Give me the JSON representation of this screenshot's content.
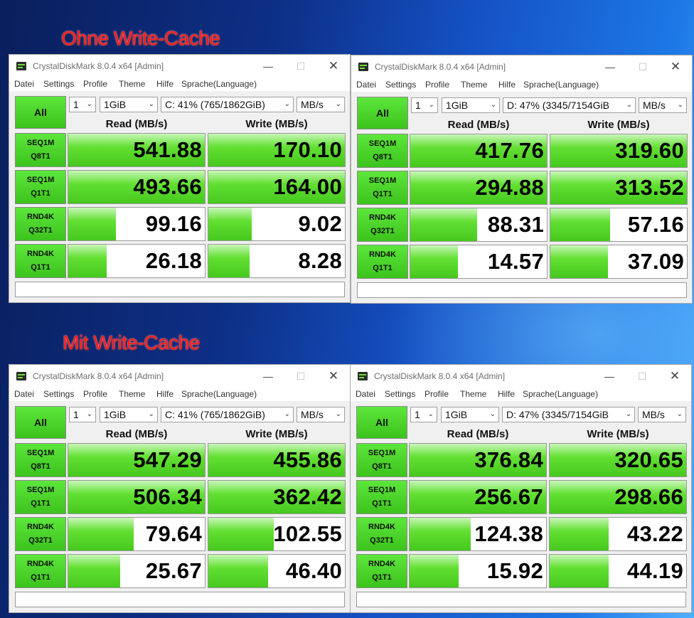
{
  "captions": {
    "top": "Ohne Write-Cache",
    "bottom": "Mit Write-Cache"
  },
  "colors": {
    "caption": "#ff1b1b",
    "bar_green": "#46c81e",
    "window_bg": "#f0f0f0"
  },
  "menu": [
    "Datei",
    "Settings",
    "Profile",
    "Theme",
    "Hilfe",
    "Sprache(Language)"
  ],
  "row_labels": [
    [
      "SEQ1M",
      "Q8T1"
    ],
    [
      "SEQ1M",
      "Q1T1"
    ],
    [
      "RND4K",
      "Q32T1"
    ],
    [
      "RND4K",
      "Q1T1"
    ]
  ],
  "windows": [
    {
      "title": "CrystalDiskMark 8.0.4 x64 [Admin]",
      "all_label": "All",
      "count": "1",
      "size": "1GiB",
      "drive": "C: 41% (765/1862GiB)",
      "unit": "MB/s",
      "read_header": "Read (MB/s)",
      "write_header": "Write (MB/s)",
      "read": [
        "541.88",
        "493.66",
        "99.16",
        "26.18"
      ],
      "write": [
        "170.10",
        "164.00",
        "9.02",
        "8.28"
      ],
      "read_fill": [
        1.0,
        1.0,
        0.35,
        0.28
      ],
      "write_fill": [
        1.0,
        1.0,
        0.32,
        0.3
      ]
    },
    {
      "title": "CrystalDiskMark 8.0.4 x64 [Admin]",
      "all_label": "All",
      "count": "1",
      "size": "1GiB",
      "drive": "D: 47% (3345/7154GiB",
      "unit": "MB/s",
      "read_header": "Read (MB/s)",
      "write_header": "Write (MB/s)",
      "read": [
        "417.76",
        "294.88",
        "88.31",
        "14.57"
      ],
      "write": [
        "319.60",
        "313.52",
        "57.16",
        "37.09"
      ],
      "read_fill": [
        1.0,
        1.0,
        0.49,
        0.35
      ],
      "write_fill": [
        1.0,
        1.0,
        0.44,
        0.42
      ]
    },
    {
      "title": "CrystalDiskMark 8.0.4 x64 [Admin]",
      "all_label": "All",
      "count": "1",
      "size": "1GiB",
      "drive": "C: 41% (765/1862GiB)",
      "unit": "MB/s",
      "read_header": "Read (MB/s)",
      "write_header": "Write (MB/s)",
      "read": [
        "547.29",
        "506.34",
        "79.64",
        "25.67"
      ],
      "write": [
        "455.86",
        "362.42",
        "102.55",
        "46.40"
      ],
      "read_fill": [
        1.0,
        1.0,
        0.48,
        0.38
      ],
      "write_fill": [
        1.0,
        1.0,
        0.48,
        0.44
      ]
    },
    {
      "title": "CrystalDiskMark 8.0.4 x64 [Admin]",
      "all_label": "All",
      "count": "1",
      "size": "1GiB",
      "drive": "D: 47% (3345/7154GiB",
      "unit": "MB/s",
      "read_header": "Read (MB/s)",
      "write_header": "Write (MB/s)",
      "read": [
        "376.84",
        "256.67",
        "124.38",
        "15.92"
      ],
      "write": [
        "320.65",
        "298.66",
        "43.22",
        "44.19"
      ],
      "read_fill": [
        1.0,
        1.0,
        0.45,
        0.36
      ],
      "write_fill": [
        1.0,
        1.0,
        0.43,
        0.43
      ]
    }
  ]
}
